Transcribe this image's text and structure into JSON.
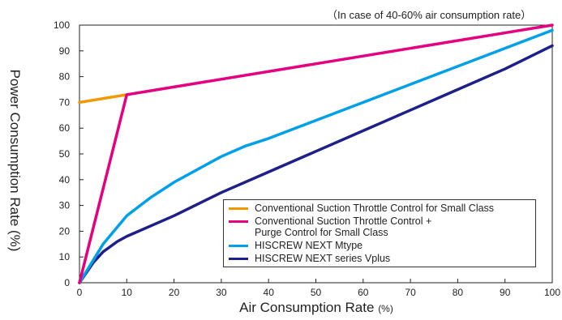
{
  "chart_data": {
    "type": "line",
    "note": "（In case of 40-60% air consumption rate）",
    "xlabel": "Air Consumption Rate",
    "xlabel_unit": "(%)",
    "ylabel": "Power Consumption Rate (%)",
    "xlim": [
      0,
      100
    ],
    "ylim": [
      0,
      100
    ],
    "xticks": [
      0,
      10,
      20,
      30,
      40,
      50,
      60,
      70,
      80,
      90,
      100
    ],
    "yticks": [
      0,
      10,
      20,
      30,
      40,
      50,
      60,
      70,
      80,
      90,
      100
    ],
    "grid": false,
    "legend_position": "bottom-right",
    "series": [
      {
        "name": "Conventional Suction Throttle Control for Small Class",
        "color": "#f39800",
        "points": [
          [
            0,
            70
          ],
          [
            10,
            73
          ]
        ]
      },
      {
        "name": "Conventional Suction Throttle Control +\nPurge Control for Small Class",
        "color": "#e4007f",
        "points": [
          [
            0,
            0
          ],
          [
            10,
            73
          ],
          [
            100,
            100
          ]
        ]
      },
      {
        "name": "HISCREW NEXT Mtype",
        "color": "#00a0e9",
        "points": [
          [
            0,
            0
          ],
          [
            5,
            15
          ],
          [
            10,
            26
          ],
          [
            15,
            33
          ],
          [
            20,
            39
          ],
          [
            25,
            44
          ],
          [
            30,
            49
          ],
          [
            35,
            53
          ],
          [
            40,
            56
          ],
          [
            50,
            63
          ],
          [
            60,
            70
          ],
          [
            70,
            77
          ],
          [
            80,
            84
          ],
          [
            90,
            91
          ],
          [
            100,
            98
          ]
        ]
      },
      {
        "name": "HISCREW NEXT series Vplus",
        "color": "#1d2088",
        "points": [
          [
            0,
            0
          ],
          [
            3,
            8
          ],
          [
            5,
            12
          ],
          [
            8,
            16
          ],
          [
            10,
            18
          ],
          [
            20,
            26
          ],
          [
            30,
            35
          ],
          [
            40,
            43
          ],
          [
            50,
            51
          ],
          [
            60,
            59
          ],
          [
            70,
            67
          ],
          [
            80,
            75
          ],
          [
            90,
            83
          ],
          [
            100,
            92
          ]
        ]
      }
    ]
  }
}
